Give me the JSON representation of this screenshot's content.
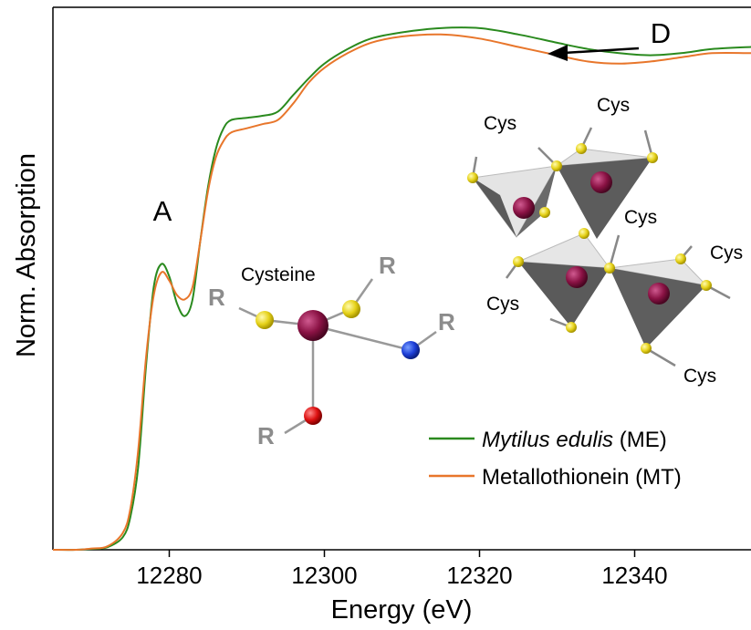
{
  "chart_data": {
    "type": "line",
    "title": "",
    "xlabel": "Energy (eV)",
    "ylabel": "Norm. Absorption",
    "xlim": [
      12265,
      12355
    ],
    "ylim": [
      0,
      1.3
    ],
    "xticks": [
      12280,
      12300,
      12320,
      12340
    ],
    "grid": false,
    "legend_position": "bottom-right",
    "series": [
      {
        "name": "Mytilus edulis",
        "name_suffix": " (ME)",
        "color": "#2a8a1e",
        "x": [
          12265,
          12268,
          12270,
          12272,
          12274,
          12275,
          12276,
          12277,
          12278,
          12279,
          12280,
          12281,
          12282,
          12283,
          12284,
          12285,
          12286,
          12287,
          12288,
          12290,
          12292,
          12294,
          12296,
          12298,
          12300,
          12303,
          12306,
          12310,
          12315,
          12320,
          12325,
          12330,
          12334,
          12338,
          12342,
          12346,
          12350,
          12355
        ],
        "y": [
          0.0,
          0.0,
          0.002,
          0.006,
          0.03,
          0.08,
          0.2,
          0.44,
          0.63,
          0.685,
          0.655,
          0.59,
          0.56,
          0.6,
          0.74,
          0.87,
          0.96,
          1.01,
          1.03,
          1.035,
          1.04,
          1.05,
          1.09,
          1.13,
          1.165,
          1.2,
          1.225,
          1.24,
          1.25,
          1.25,
          1.235,
          1.215,
          1.2,
          1.19,
          1.185,
          1.19,
          1.2,
          1.205
        ]
      },
      {
        "name": "Metallothionein",
        "name_suffix": " (MT)",
        "color": "#e8762b",
        "x": [
          12265,
          12268,
          12270,
          12272,
          12274,
          12275,
          12276,
          12277,
          12278,
          12279,
          12280,
          12281,
          12282,
          12283,
          12284,
          12285,
          12286,
          12287,
          12288,
          12290,
          12292,
          12294,
          12296,
          12298,
          12300,
          12303,
          12306,
          12310,
          12315,
          12320,
          12325,
          12330,
          12334,
          12338,
          12342,
          12346,
          12350,
          12355
        ],
        "y": [
          0.0,
          0.0,
          0.003,
          0.008,
          0.04,
          0.1,
          0.24,
          0.46,
          0.61,
          0.665,
          0.645,
          0.61,
          0.6,
          0.63,
          0.74,
          0.86,
          0.94,
          0.98,
          1.0,
          1.01,
          1.02,
          1.03,
          1.07,
          1.12,
          1.155,
          1.19,
          1.215,
          1.23,
          1.235,
          1.225,
          1.205,
          1.185,
          1.17,
          1.165,
          1.17,
          1.18,
          1.19,
          1.19
        ]
      }
    ],
    "annotations": {
      "peak_a": "A",
      "region_d": "D",
      "cysteine": "Cysteine",
      "r": "R",
      "cys": "Cys"
    }
  }
}
